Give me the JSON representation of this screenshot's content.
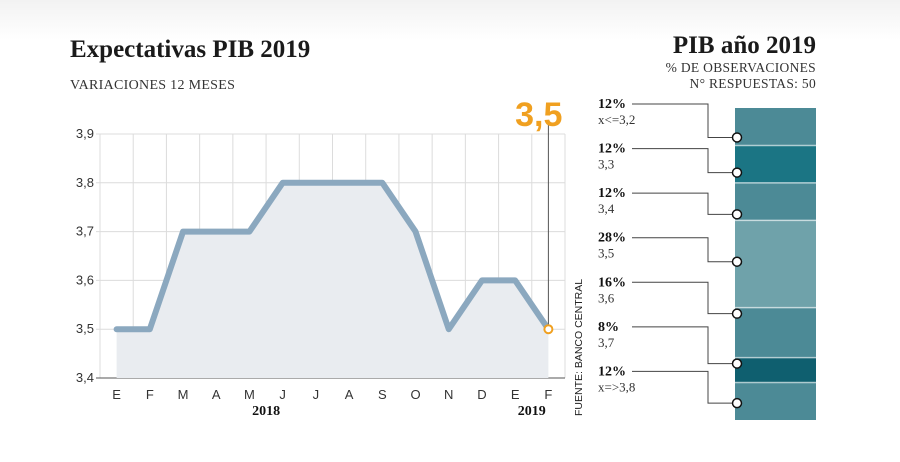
{
  "chart_data": [
    {
      "type": "line",
      "title": "Expectativas PIB 2019",
      "subtitle": "VARIACIONES 12 MESES",
      "categories": [
        "E",
        "F",
        "M",
        "A",
        "M",
        "J",
        "J",
        "A",
        "S",
        "O",
        "N",
        "D",
        "E",
        "F"
      ],
      "year_labels": [
        "2018",
        "2019"
      ],
      "series": [
        {
          "values": [
            3.5,
            3.5,
            3.7,
            3.7,
            3.7,
            3.8,
            3.8,
            3.8,
            3.8,
            3.7,
            3.5,
            3.6,
            3.6,
            3.5
          ]
        }
      ],
      "y_ticks": [
        "3,4",
        "3,5",
        "3,6",
        "3,7",
        "3,8",
        "3,9"
      ],
      "ylim": [
        3.4,
        3.9
      ],
      "callout": "3,5",
      "source": "FUENTE: BANCO CENTRAL",
      "grid": true
    },
    {
      "type": "bar",
      "title": "PIB año 2019",
      "subtitle_1": "% DE OBSERVACIONES",
      "subtitle_2": "N° RESPUESTAS: 50",
      "categories": [
        "x<=3,2",
        "3,3",
        "3,4",
        "3,5",
        "3,6",
        "3,7",
        "x=>3,8"
      ],
      "values": [
        12,
        12,
        12,
        28,
        16,
        8,
        12
      ],
      "value_labels": [
        "12%",
        "12%",
        "12%",
        "28%",
        "16%",
        "8%",
        "12%"
      ]
    }
  ],
  "colors": {
    "line": "#8ba8bf",
    "area": "#e9ecf0",
    "callout": "#f0a020",
    "segments": [
      "#4c8a96",
      "#1b7584",
      "#4c8a96",
      "#6fa2aa",
      "#4c8a96",
      "#0f5f6f",
      "#4c8a96"
    ]
  }
}
